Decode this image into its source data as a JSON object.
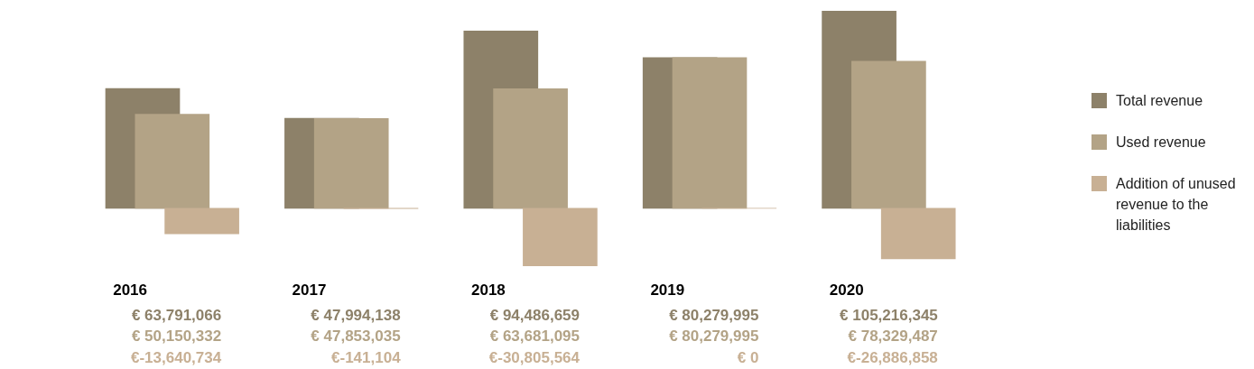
{
  "chart_data": {
    "type": "bar",
    "categories": [
      "2016",
      "2017",
      "2018",
      "2019",
      "2020"
    ],
    "legend": "right",
    "series": [
      {
        "name": "Total revenue",
        "color": "#8d8169",
        "values": [
          63791066,
          47994138,
          94486659,
          80279995,
          105216345
        ],
        "value_labels": [
          "€ 63,791,066",
          "€ 47,994,138",
          "€ 94,486,659",
          "€ 80,279,995",
          "€ 105,216,345"
        ]
      },
      {
        "name": "Used revenue",
        "color": "#b3a386",
        "values": [
          50150332,
          47853035,
          63681095,
          80279995,
          78329487
        ],
        "value_labels": [
          "€ 50,150,332",
          "€ 47,853,035",
          "€ 63,681,095",
          "€ 80,279,995",
          "€ 78,329,487"
        ]
      },
      {
        "name": "Addition of unused revenue to the liabilities",
        "color": "#c8b094",
        "values": [
          -13640734,
          -141104,
          -30805564,
          0,
          -26886858
        ],
        "value_labels": [
          "€-13,640,734",
          "€-141,104",
          "€-30,805,564",
          "€ 0",
          "€-26,886,858"
        ]
      }
    ]
  }
}
